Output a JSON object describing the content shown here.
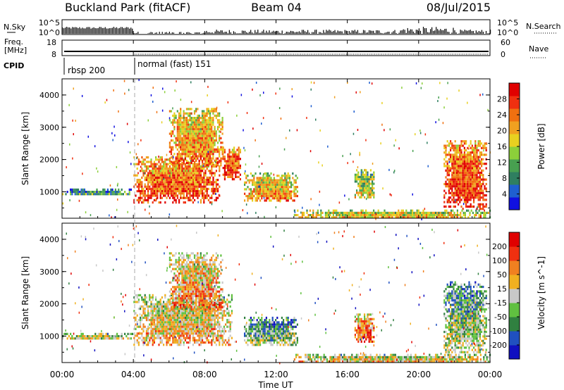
{
  "header": {
    "station": "Buckland Park (fitACF)",
    "beam": "Beam 04",
    "date": "08/Jul/2015"
  },
  "top_panels": {
    "nsky_label": "N.Sky",
    "nsky_ticks": [
      "10^5",
      "10^0"
    ],
    "nsearch_label": "N.Search",
    "nsearch_ticks": [
      "10^5",
      "10^0"
    ],
    "freq_label_line1": "Freq.",
    "freq_label_line2": "[MHz]",
    "freq_ticks": [
      "18",
      "8"
    ],
    "nave_label": "Nave",
    "nave_ticks": [
      "60",
      "0"
    ],
    "cpid_label": "CPID",
    "cpid_modes": [
      {
        "name": "rbsp 200",
        "start_hour": 0,
        "end_hour": 4
      },
      {
        "name": "normal (fast) 151",
        "start_hour": 4,
        "end_hour": 24
      }
    ]
  },
  "chart_data": [
    {
      "type": "heatmap",
      "title": "",
      "xlabel": "Time UT",
      "ylabel": "Slant Range [km]",
      "x_range_hours": [
        0,
        24
      ],
      "x_ticks": [
        "00:00",
        "04:00",
        "08:00",
        "12:00",
        "16:00",
        "20:00",
        "00:00"
      ],
      "ylim": [
        180,
        4500
      ],
      "y_ticks": [
        "1000",
        "2000",
        "3000",
        "4000"
      ],
      "colorbar_label": "Power [dB]",
      "colorbar_ticks": [
        "4",
        "8",
        "12",
        "16",
        "20",
        "24",
        "28"
      ],
      "colorscale": [
        "#1010e0",
        "#1f5fd0",
        "#2f7f60",
        "#48a050",
        "#8ccf3a",
        "#e8d020",
        "#f0a020",
        "#f07010",
        "#f03010",
        "#e00000"
      ],
      "regions": [
        {
          "t0": 0.0,
          "t1": 3.95,
          "r0": 900,
          "r1": 1100,
          "level": 0.3
        },
        {
          "t0": 4.0,
          "t1": 8.8,
          "r0": 700,
          "r1": 2100,
          "level": 0.75
        },
        {
          "t0": 6.0,
          "t1": 9.0,
          "r0": 1800,
          "r1": 3600,
          "level": 0.65
        },
        {
          "t0": 9.0,
          "t1": 10.0,
          "r0": 1400,
          "r1": 2400,
          "level": 0.8
        },
        {
          "t0": 10.2,
          "t1": 13.2,
          "r0": 700,
          "r1": 1600,
          "level": 0.6
        },
        {
          "t0": 16.4,
          "t1": 17.5,
          "r0": 800,
          "r1": 1700,
          "level": 0.45
        },
        {
          "t0": 21.4,
          "t1": 23.8,
          "r0": 500,
          "r1": 2600,
          "level": 0.8
        },
        {
          "t0": 13.0,
          "t1": 24.0,
          "r0": 180,
          "r1": 450,
          "level": 0.55
        }
      ]
    },
    {
      "type": "heatmap",
      "title": "",
      "xlabel": "Time UT",
      "ylabel": "Slant Range [km]",
      "x_range_hours": [
        0,
        24
      ],
      "x_ticks": [
        "00:00",
        "04:00",
        "08:00",
        "12:00",
        "16:00",
        "20:00",
        "00:00"
      ],
      "ylim": [
        180,
        4500
      ],
      "y_ticks": [
        "1000",
        "2000",
        "3000",
        "4000"
      ],
      "colorbar_label": "Velocity [m s^-1]",
      "colorbar_ticks": [
        "200",
        "100",
        "50",
        "15",
        "-15",
        "-50",
        "-100",
        "-200"
      ],
      "colorscale": [
        "#1010c0",
        "#2050c0",
        "#308040",
        "#60c040",
        "#c8c8c8",
        "#f0b020",
        "#f08020",
        "#f03010",
        "#e00000"
      ],
      "regions": [
        {
          "t0": 0.0,
          "t1": 3.95,
          "r0": 900,
          "r1": 1100,
          "level": 0.5
        },
        {
          "t0": 4.0,
          "t1": 9.5,
          "r0": 700,
          "r1": 2300,
          "level": 0.55
        },
        {
          "t0": 6.0,
          "t1": 9.0,
          "r0": 1800,
          "r1": 3600,
          "level": 0.62
        },
        {
          "t0": 10.2,
          "t1": 13.2,
          "r0": 700,
          "r1": 1600,
          "level": 0.35
        },
        {
          "t0": 16.4,
          "t1": 17.5,
          "r0": 800,
          "r1": 1700,
          "level": 0.7
        },
        {
          "t0": 21.4,
          "t1": 23.8,
          "r0": 500,
          "r1": 2700,
          "level": 0.4
        },
        {
          "t0": 13.0,
          "t1": 24.0,
          "r0": 180,
          "r1": 450,
          "level": 0.55
        }
      ]
    }
  ]
}
